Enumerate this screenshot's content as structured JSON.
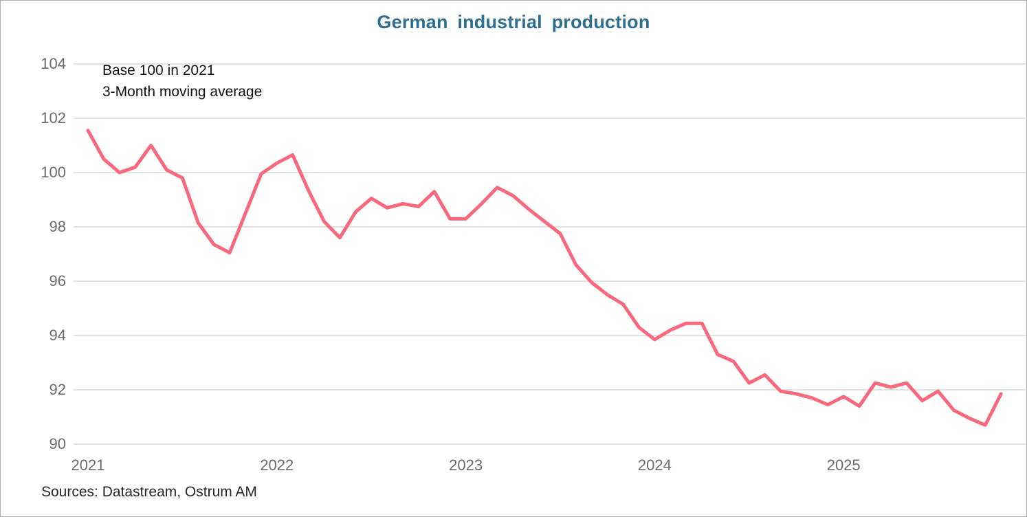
{
  "title": "German industrial production",
  "annotation": {
    "line1": "Base 100 in 2021",
    "line2": "3-Month moving average"
  },
  "source_note": "Sources: Datastream, Ostrum AM",
  "colors": {
    "title": "#2e6f91",
    "line": "#f9697e",
    "grid": "#d9d9d9",
    "tick_text": "#6b6b6b",
    "frame_border": "#b0b0b0"
  },
  "chart_data": {
    "type": "line",
    "title": "German industrial production",
    "subtitle_lines": [
      "Base 100 in 2021",
      "3-Month moving average"
    ],
    "source": "Sources: Datastream, Ostrum AM",
    "xlabel": "",
    "ylabel": "",
    "ylim": [
      90,
      104
    ],
    "y_ticks": [
      104,
      102,
      100,
      98,
      96,
      94,
      92,
      90
    ],
    "x_tick_labels": [
      "2021",
      "2022",
      "2023",
      "2024",
      "2025"
    ],
    "grid": "horizontal-only",
    "legend_position": "none",
    "series_name": "German industrial production (3-month moving average, base 100 in 2021)",
    "x": [
      "2021-01",
      "2021-02",
      "2021-03",
      "2021-04",
      "2021-05",
      "2021-06",
      "2021-07",
      "2021-08",
      "2021-09",
      "2021-10",
      "2021-11",
      "2021-12",
      "2022-01",
      "2022-02",
      "2022-03",
      "2022-04",
      "2022-05",
      "2022-06",
      "2022-07",
      "2022-08",
      "2022-09",
      "2022-10",
      "2022-11",
      "2022-12",
      "2023-01",
      "2023-02",
      "2023-03",
      "2023-04",
      "2023-05",
      "2023-06",
      "2023-07",
      "2023-08",
      "2023-09",
      "2023-10",
      "2023-11",
      "2023-12",
      "2024-01",
      "2024-02",
      "2024-03",
      "2024-04",
      "2024-05",
      "2024-06",
      "2024-07",
      "2024-08",
      "2024-09",
      "2024-10",
      "2024-11",
      "2024-12",
      "2025-01",
      "2025-02",
      "2025-03",
      "2025-04",
      "2025-05",
      "2025-06",
      "2025-07",
      "2025-08",
      "2025-09",
      "2025-10",
      "2025-11"
    ],
    "values": [
      101.55,
      100.5,
      100.0,
      100.2,
      101.0,
      100.1,
      99.8,
      98.15,
      97.35,
      97.05,
      98.5,
      99.95,
      100.35,
      100.65,
      99.35,
      98.2,
      97.6,
      98.55,
      99.05,
      98.7,
      98.85,
      98.75,
      99.3,
      98.3,
      98.3,
      98.85,
      99.45,
      99.15,
      98.65,
      98.2,
      97.75,
      96.6,
      95.95,
      95.5,
      95.15,
      94.3,
      93.85,
      94.2,
      94.45,
      94.45,
      93.3,
      93.05,
      92.25,
      92.55,
      91.95,
      91.85,
      91.7,
      91.45,
      91.75,
      91.4,
      92.25,
      92.1,
      92.25,
      91.6,
      91.95,
      91.25,
      90.95,
      90.7,
      91.85
    ]
  }
}
